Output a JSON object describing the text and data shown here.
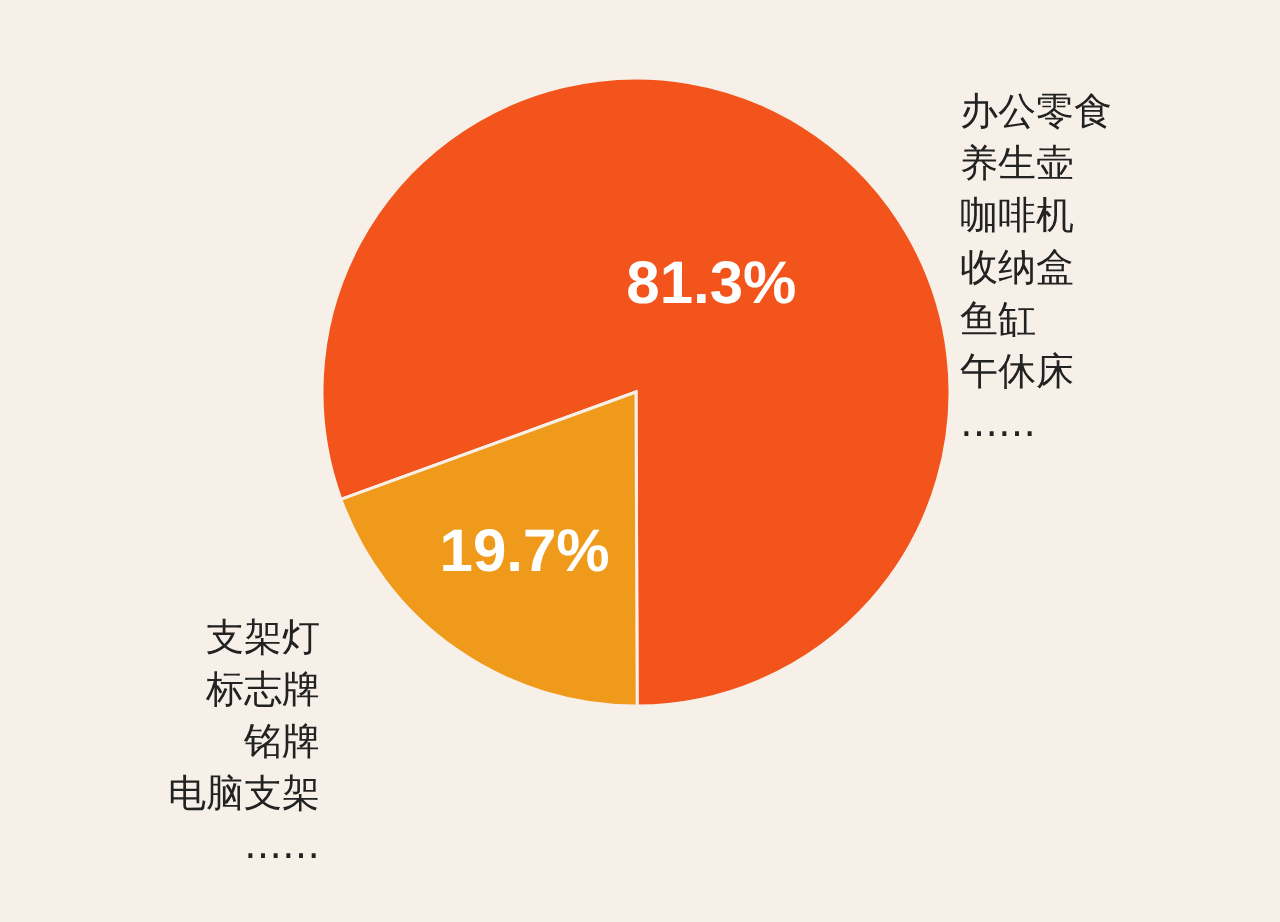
{
  "chart_data": [
    {
      "type": "pie",
      "categories": [
        null,
        null
      ],
      "values": [
        81.3,
        19.7
      ],
      "colors": [
        "#f2541b",
        "#f09a1c"
      ],
      "value_labels": [
        "81.3%",
        "19.7%"
      ]
    },
    {
      "type": "other",
      "annotations": [
        "办公零食",
        "养生壶",
        "咖啡机",
        "收纳盒",
        "鱼缸",
        "午休床",
        "……"
      ]
    },
    {
      "type": "other",
      "annotations": [
        "支架灯",
        "标志牌",
        "铭牌",
        "电脑支架",
        "……"
      ]
    }
  ]
}
